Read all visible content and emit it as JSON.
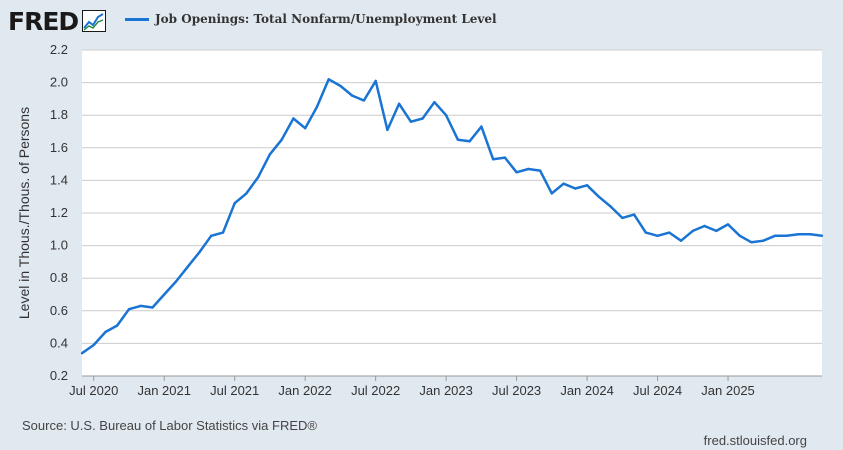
{
  "header": {
    "logo_text": "FRED",
    "legend_label": "Job Openings: Total Nonfarm/Unemployment Level",
    "legend_icon": "line-swatch"
  },
  "colors": {
    "series": "#1a74d4",
    "background": "#e1e9f0",
    "plot_bg": "#ffffff",
    "grid": "#cccccc"
  },
  "footer": {
    "source": "Source: U.S. Bureau of Labor Statistics via FRED®",
    "site": "fred.stlouisfed.org"
  },
  "chart_data": {
    "type": "line",
    "ylabel": "Level in Thous./Thous. of Persons",
    "ylim": [
      0.2,
      2.2
    ],
    "yticks": [
      "0.2",
      "0.4",
      "0.6",
      "0.8",
      "1.0",
      "1.2",
      "1.4",
      "1.6",
      "1.8",
      "2.0",
      "2.2"
    ],
    "grid": true,
    "xlim": [
      "2020-06",
      "2025-09"
    ],
    "xticks": [
      {
        "date": "2020-07",
        "label": "Jul 2020"
      },
      {
        "date": "2021-01",
        "label": "Jan 2021"
      },
      {
        "date": "2021-07",
        "label": "Jul 2021"
      },
      {
        "date": "2022-01",
        "label": "Jan 2022"
      },
      {
        "date": "2022-07",
        "label": "Jul 2022"
      },
      {
        "date": "2023-01",
        "label": "Jan 2023"
      },
      {
        "date": "2023-07",
        "label": "Jul 2023"
      },
      {
        "date": "2024-01",
        "label": "Jan 2024"
      },
      {
        "date": "2024-07",
        "label": "Jul 2024"
      },
      {
        "date": "2025-01",
        "label": "Jan 2025"
      }
    ],
    "series": [
      {
        "name": "Job Openings: Total Nonfarm/Unemployment Level",
        "x": [
          "2020-06",
          "2020-07",
          "2020-08",
          "2020-09",
          "2020-10",
          "2020-11",
          "2020-12",
          "2021-01",
          "2021-02",
          "2021-03",
          "2021-04",
          "2021-05",
          "2021-06",
          "2021-07",
          "2021-08",
          "2021-09",
          "2021-10",
          "2021-11",
          "2021-12",
          "2022-01",
          "2022-02",
          "2022-03",
          "2022-04",
          "2022-05",
          "2022-06",
          "2022-07",
          "2022-08",
          "2022-09",
          "2022-10",
          "2022-11",
          "2022-12",
          "2023-01",
          "2023-02",
          "2023-03",
          "2023-04",
          "2023-05",
          "2023-06",
          "2023-07",
          "2023-08",
          "2023-09",
          "2023-10",
          "2023-11",
          "2023-12",
          "2024-01",
          "2024-02",
          "2024-03",
          "2024-04",
          "2024-05",
          "2024-06",
          "2024-07",
          "2024-08",
          "2024-09",
          "2024-10",
          "2024-11",
          "2024-12",
          "2025-01",
          "2025-02",
          "2025-03",
          "2025-04",
          "2025-05",
          "2025-06",
          "2025-07",
          "2025-08",
          "2025-09"
        ],
        "values": [
          0.34,
          0.39,
          0.47,
          0.51,
          0.61,
          0.63,
          0.62,
          0.7,
          0.78,
          0.87,
          0.96,
          1.06,
          1.08,
          1.26,
          1.32,
          1.42,
          1.56,
          1.65,
          1.78,
          1.72,
          1.85,
          2.02,
          1.98,
          1.92,
          1.89,
          2.01,
          1.71,
          1.87,
          1.76,
          1.78,
          1.88,
          1.8,
          1.65,
          1.64,
          1.73,
          1.53,
          1.54,
          1.45,
          1.47,
          1.46,
          1.32,
          1.38,
          1.35,
          1.37,
          1.3,
          1.24,
          1.17,
          1.19,
          1.08,
          1.06,
          1.08,
          1.03,
          1.09,
          1.12,
          1.09,
          1.13,
          1.06,
          1.02,
          1.03,
          1.06,
          1.06,
          1.07,
          1.07,
          1.06
        ]
      }
    ]
  }
}
